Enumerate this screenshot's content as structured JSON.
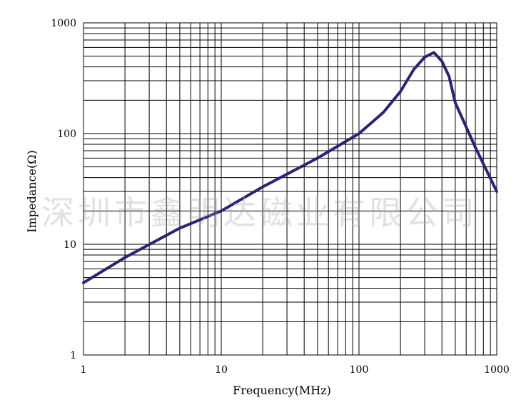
{
  "chart_data": {
    "type": "line",
    "xlabel": "Frequency(MHz)",
    "ylabel": "Impedance(Ω)",
    "x_scale": "log",
    "y_scale": "log",
    "xlim": [
      1,
      1000
    ],
    "ylim": [
      1,
      1000
    ],
    "x_ticks": [
      "1",
      "10",
      "100",
      "1000"
    ],
    "y_ticks": [
      "1",
      "10",
      "100",
      "1000"
    ],
    "grid": true,
    "line_color": "#2b2472",
    "series": [
      {
        "x": [
          1,
          2,
          5,
          10,
          20,
          50,
          100,
          150,
          200,
          250,
          300,
          350,
          400,
          450,
          500,
          700,
          1000
        ],
        "y": [
          4.5,
          7.6,
          14,
          20,
          33,
          60,
          100,
          155,
          240,
          380,
          490,
          540,
          450,
          330,
          190,
          75,
          30
        ]
      }
    ]
  },
  "watermark": "深圳市鑫明达磁业有限公司"
}
